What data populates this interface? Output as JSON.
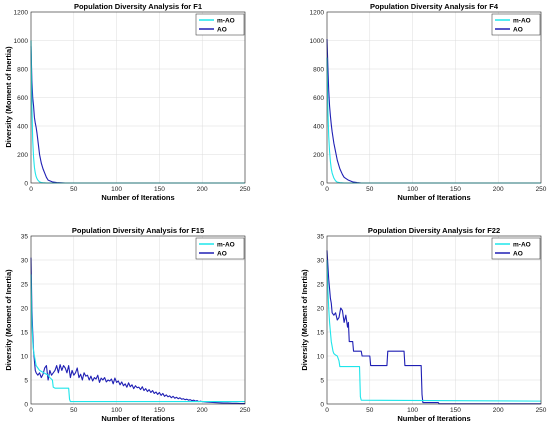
{
  "colors": {
    "m_ao": "#1ee5ea",
    "ao": "#1f1fb4",
    "grid": "#dcdcdc",
    "axis": "#262626"
  },
  "chart_data": [
    {
      "type": "line",
      "title": "Population Diversity Analysis for F1",
      "xlabel": "Number of Iterations",
      "ylabel": "Diversity (Moment of Inertia)",
      "xlim": [
        0,
        250
      ],
      "ylim": [
        0,
        1200
      ],
      "xticks": [
        "0",
        "50",
        "100",
        "150",
        "200",
        "250"
      ],
      "yticks": [
        "0",
        "200",
        "400",
        "600",
        "800",
        "1000",
        "1200"
      ],
      "grid": true,
      "legend": "top-right",
      "series": [
        {
          "name": "m-AO",
          "color_key": "m_ao",
          "x": [
            0,
            1,
            2,
            3,
            4,
            5,
            6,
            7,
            8,
            10,
            12,
            15,
            18,
            250
          ],
          "y": [
            1000,
            550,
            300,
            180,
            110,
            70,
            45,
            30,
            20,
            8,
            3,
            1,
            0,
            0
          ]
        },
        {
          "name": "AO",
          "color_key": "ao",
          "x": [
            0,
            1,
            2,
            3,
            4,
            5,
            6,
            7,
            8,
            10,
            12,
            14,
            16,
            18,
            20,
            25,
            30,
            40,
            250
          ],
          "y": [
            960,
            720,
            600,
            540,
            460,
            420,
            390,
            350,
            300,
            200,
            140,
            100,
            70,
            40,
            20,
            8,
            3,
            0,
            0
          ]
        }
      ]
    },
    {
      "type": "line",
      "title": "Population Diversity Analysis for F4",
      "xlabel": "Number of Iterations",
      "ylabel": "",
      "xlim": [
        0,
        250
      ],
      "ylim": [
        0,
        1200
      ],
      "xticks": [
        "0",
        "50",
        "100",
        "150",
        "200",
        "250"
      ],
      "yticks": [
        "0",
        "200",
        "400",
        "600",
        "800",
        "1000",
        "1200"
      ],
      "grid": true,
      "legend": "top-right",
      "series": [
        {
          "name": "m-AO",
          "color_key": "m_ao",
          "x": [
            0,
            1,
            2,
            3,
            4,
            5,
            6,
            8,
            10,
            12,
            15,
            20,
            250
          ],
          "y": [
            880,
            520,
            330,
            220,
            150,
            100,
            70,
            35,
            15,
            6,
            2,
            0,
            0
          ]
        },
        {
          "name": "AO",
          "color_key": "ao",
          "x": [
            0,
            1,
            2,
            3,
            4,
            5,
            6,
            8,
            10,
            12,
            15,
            18,
            20,
            25,
            30,
            35,
            40,
            250
          ],
          "y": [
            1010,
            820,
            650,
            540,
            470,
            410,
            360,
            280,
            220,
            160,
            100,
            60,
            40,
            20,
            8,
            3,
            0,
            0
          ]
        }
      ]
    },
    {
      "type": "line",
      "title": "Population Diversity Analysis for F15",
      "xlabel": "Number of Iterations",
      "ylabel": "Diversity (Moment of Inertia)",
      "xlim": [
        0,
        250
      ],
      "ylim": [
        0,
        35
      ],
      "xticks": [
        "0",
        "50",
        "100",
        "150",
        "200",
        "250"
      ],
      "yticks": [
        "0",
        "5",
        "10",
        "15",
        "20",
        "25",
        "30",
        "35"
      ],
      "grid": true,
      "legend": "top-right",
      "series": [
        {
          "name": "m-AO",
          "color_key": "m_ao",
          "x": [
            0,
            1,
            2,
            3,
            4,
            5,
            6,
            8,
            10,
            12,
            15,
            18,
            20,
            22,
            25,
            26,
            28,
            30,
            44,
            45,
            46,
            250
          ],
          "y": [
            27,
            17,
            13,
            11,
            10,
            9,
            8,
            7.5,
            7,
            6.8,
            6.5,
            6.2,
            6,
            5.5,
            5,
            3.5,
            3.3,
            3.3,
            3.3,
            1,
            0.5,
            0.5
          ]
        },
        {
          "name": "AO",
          "color_key": "ao",
          "x": [
            0,
            1,
            2,
            3,
            4,
            5,
            6,
            8,
            10,
            12,
            14,
            16,
            18,
            20,
            22,
            24,
            26,
            28,
            30,
            32,
            34,
            36,
            38,
            40,
            42,
            44,
            46,
            48,
            50,
            52,
            54,
            56,
            58,
            60,
            62,
            64,
            66,
            68,
            70,
            72,
            74,
            76,
            78,
            80,
            82,
            84,
            86,
            88,
            90,
            92,
            94,
            96,
            98,
            100,
            102,
            104,
            106,
            108,
            110,
            112,
            114,
            116,
            118,
            120,
            122,
            124,
            126,
            128,
            130,
            132,
            134,
            136,
            138,
            140,
            142,
            144,
            146,
            148,
            150,
            152,
            154,
            156,
            158,
            160,
            162,
            164,
            166,
            168,
            170,
            172,
            174,
            176,
            178,
            180,
            182,
            184,
            186,
            188,
            190,
            192,
            194,
            196,
            198,
            200,
            205,
            210,
            215,
            220,
            225,
            230,
            235,
            240,
            245,
            250
          ],
          "y": [
            30.5,
            20,
            15,
            11,
            9,
            7,
            6.5,
            6,
            6.5,
            5.5,
            6.2,
            7.5,
            8,
            5,
            7,
            6,
            6.5,
            7,
            8,
            6.5,
            8.2,
            7,
            8,
            7.5,
            6.5,
            8,
            5.5,
            7,
            6,
            6.5,
            7.5,
            5.5,
            6.2,
            5,
            6.5,
            5.8,
            6,
            5,
            5.8,
            4.8,
            5.5,
            5.2,
            6,
            4.5,
            5.4,
            5,
            5.5,
            4.6,
            5,
            4.8,
            5.2,
            4.2,
            5.4,
            4.5,
            4.8,
            4,
            4.6,
            3.8,
            4.2,
            3.5,
            4.4,
            3.6,
            4,
            3.2,
            3.8,
            3.4,
            3.5,
            3,
            3.6,
            2.8,
            3.2,
            2.6,
            3,
            2.4,
            2.8,
            2.2,
            2.5,
            2,
            2.4,
            1.8,
            2.2,
            1.6,
            1.9,
            1.5,
            1.7,
            1.3,
            1.6,
            1.2,
            1.4,
            1.1,
            1.3,
            1,
            1.1,
            0.9,
            1,
            0.8,
            0.9,
            0.7,
            0.8,
            0.6,
            0.7,
            0.5,
            0.6,
            0.5,
            0.4,
            0.35,
            0.3,
            0.25,
            0.2,
            0.2,
            0.15,
            0.15,
            0.1,
            0.1
          ]
        }
      ]
    },
    {
      "type": "line",
      "title": "Population Diversity Analysis for F22",
      "xlabel": "Number of Iterations",
      "ylabel": "Diversity (Moment of Inertia)",
      "xlim": [
        0,
        250
      ],
      "ylim": [
        0,
        35
      ],
      "xticks": [
        "0",
        "50",
        "100",
        "150",
        "200",
        "250"
      ],
      "yticks": [
        "0",
        "5",
        "10",
        "15",
        "20",
        "25",
        "30",
        "35"
      ],
      "grid": true,
      "legend": "top-right",
      "series": [
        {
          "name": "m-AO",
          "color_key": "m_ao",
          "x": [
            0,
            1,
            2,
            3,
            4,
            5,
            6,
            7,
            8,
            10,
            12,
            14,
            15,
            38,
            39,
            40,
            250
          ],
          "y": [
            30,
            24,
            20,
            17,
            15,
            13,
            12,
            11,
            10.5,
            10.2,
            10,
            9,
            7.8,
            7.8,
            1.5,
            0.8,
            0.6
          ]
        },
        {
          "name": "AO",
          "color_key": "ao",
          "x": [
            0,
            1,
            2,
            3,
            4,
            5,
            6,
            8,
            10,
            12,
            14,
            16,
            18,
            20,
            22,
            24,
            25,
            26,
            30,
            31,
            40,
            41,
            50,
            51,
            70,
            71,
            90,
            91,
            92,
            95,
            110,
            111,
            112,
            130,
            131,
            250
          ],
          "y": [
            32,
            29,
            26,
            24,
            22,
            21,
            19,
            18.5,
            19,
            17.5,
            18,
            20,
            19.5,
            17,
            18.5,
            16,
            17,
            13,
            13,
            11,
            11,
            10,
            10,
            8,
            8,
            11,
            11,
            8,
            8,
            8,
            8,
            2,
            0.3,
            0.3,
            0.05,
            0.05
          ]
        }
      ]
    }
  ]
}
